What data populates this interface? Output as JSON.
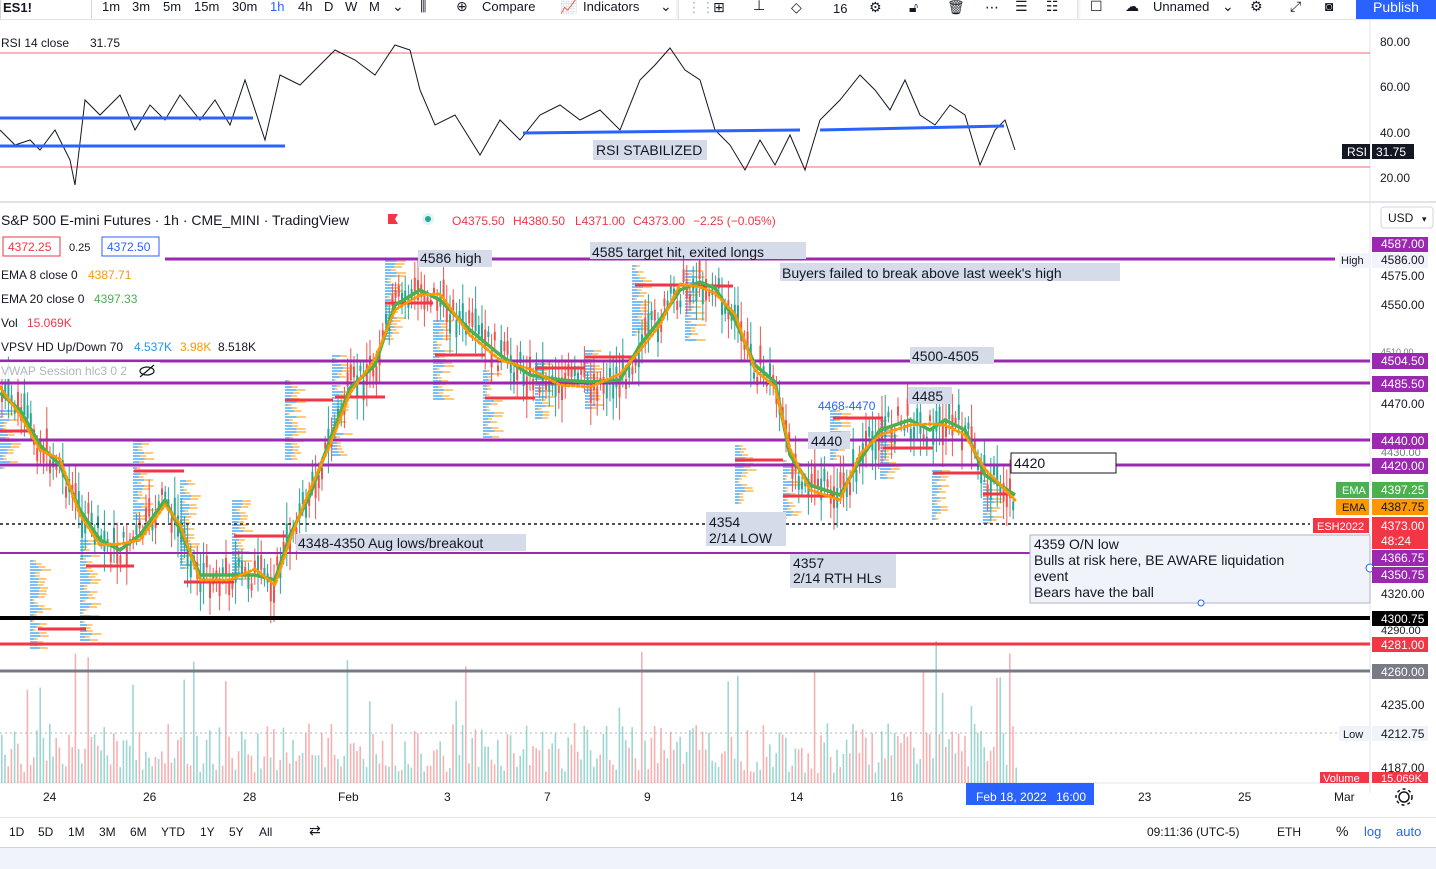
{
  "toolbar": {
    "symbol": "ES1!",
    "intervals": [
      "1m",
      "3m",
      "5m",
      "15m",
      "30m",
      "1h",
      "4h",
      "D",
      "W",
      "M"
    ],
    "active_interval": "1h",
    "compare_label": "Compare",
    "indicators_label": "Indicators",
    "line_width": "16",
    "layout_name": "Unnamed",
    "publish_label": "Publish"
  },
  "rsi_pane": {
    "legend": "RSI 14 close",
    "value": "31.75",
    "axis_ticks": [
      "80.00",
      "60.00",
      "40.00",
      "20.00"
    ],
    "badge_label": "RSI",
    "annotation": "RSI STABILIZED"
  },
  "legend": {
    "title": "S&P 500 E-mini Futures · 1h · CME_MINI · TradingView",
    "ohlc": {
      "open": "O4375.50",
      "high": "H4380.50",
      "low": "L4371.00",
      "close": "C4373.00",
      "change": "−2.25 (−0.05%)"
    },
    "bid": "4372.25",
    "spread": "0.25",
    "ask": "4372.50",
    "ema8": {
      "label": "EMA 8 close 0",
      "value": "4387.71"
    },
    "ema20": {
      "label": "EMA 20 close 0",
      "value": "4397.33"
    },
    "vol": {
      "label": "Vol",
      "value": "15.069K"
    },
    "vpsv": {
      "label": "VPSV HD Up/Down 70",
      "up": "4.537K",
      "down": "3.98K",
      "total": "8.518K"
    },
    "vwap": {
      "label": "VWAP Session hlc3 0 2"
    }
  },
  "currency": "USD",
  "price_axis": {
    "ticks": [
      "4575.00",
      "4550.00",
      "4470.00",
      "4320.00",
      "4290.00",
      "4235.00",
      "4187.00"
    ],
    "small_ticks": [
      "4510.00",
      "4430.00"
    ],
    "badges": [
      {
        "text": "4587.00",
        "color": "#9c27b0"
      },
      {
        "text": "4586.00",
        "color": "#f0f3fa"
      },
      {
        "text": "4504.50",
        "color": "#9c27b0"
      },
      {
        "text": "4485.50",
        "color": "#9c27b0"
      },
      {
        "text": "4440.00",
        "color": "#9c27b0"
      },
      {
        "text": "4420.00",
        "color": "#9c27b0"
      },
      {
        "text": "4397.25",
        "color": "#4caf50"
      },
      {
        "text": "4387.75",
        "color": "#ff9800"
      },
      {
        "text": "4373.00",
        "color": "#f23645"
      },
      {
        "text": "48:24",
        "color": "#f23645"
      },
      {
        "text": "4366.75",
        "color": "#9c27b0"
      },
      {
        "text": "4350.75",
        "color": "#9c27b0"
      },
      {
        "text": "4300.75",
        "color": "#000000"
      },
      {
        "text": "4281.00",
        "color": "#f23645"
      },
      {
        "text": "4260.00",
        "color": "#787b86"
      },
      {
        "text": "4212.75",
        "color": "#f0f3fa"
      },
      {
        "text": "15.069K",
        "color": "#f23645"
      }
    ],
    "ema_tag": "EMA",
    "contract_tag": "ESH2022",
    "high_tag": "High",
    "low_tag": "Low",
    "volume_tag": "Volume"
  },
  "annotations": {
    "a4586": "4586 high",
    "a4585": "4585 target hit, exited longs",
    "buyers": "Buyers failed to break above last week's high",
    "a4500": "4500-4505",
    "a4468": "4468-4470",
    "a4485": "4485",
    "a4440": "4440",
    "a4420": "4420",
    "a4354_1": "4354",
    "a4354_2": "2/14 LOW",
    "a4348": "4348-4350 Aug lows/breakout",
    "a4357_1": "4357",
    "a4357_2": "2/14 RTH HLs",
    "note1": "4359 O/N low",
    "note2": "Bulls at risk here, BE AWARE liquidation",
    "note3": "event",
    "note4": "Bears have the ball"
  },
  "time_axis": {
    "ticks": [
      "24",
      "26",
      "28",
      "Feb",
      "3",
      "7",
      "9",
      "14",
      "16",
      "23",
      "25",
      "Mar"
    ],
    "cursor": "Feb 18, 2022",
    "cursor_time": "16:00"
  },
  "bottom_bar": {
    "ranges": [
      "1D",
      "5D",
      "1M",
      "3M",
      "6M",
      "YTD",
      "1Y",
      "5Y",
      "All"
    ],
    "clock": "09:11:36 (UTC-5)",
    "session": "ETH",
    "percent": "%",
    "log": "log",
    "auto": "auto"
  },
  "colors": {
    "purple_level": "#9c27b0",
    "red_level": "#f23645",
    "ema8": "#ff9800",
    "ema20": "#4caf50",
    "rsi_trend": "#2962ff",
    "up_volume": "#26a69a",
    "down_volume": "#ef5350"
  },
  "chart_data": {
    "type": "line",
    "price_levels": [
      4587.0,
      4504.5,
      4485.5,
      4440.0,
      4420.0,
      4366.75,
      4350.75,
      4300.75,
      4281.0,
      4260.0
    ],
    "ema8_last": 4387.75,
    "ema20_last": 4397.25,
    "last_price": 4373.0,
    "rsi_last": 31.75,
    "rsi_levels": [
      70,
      30
    ]
  }
}
